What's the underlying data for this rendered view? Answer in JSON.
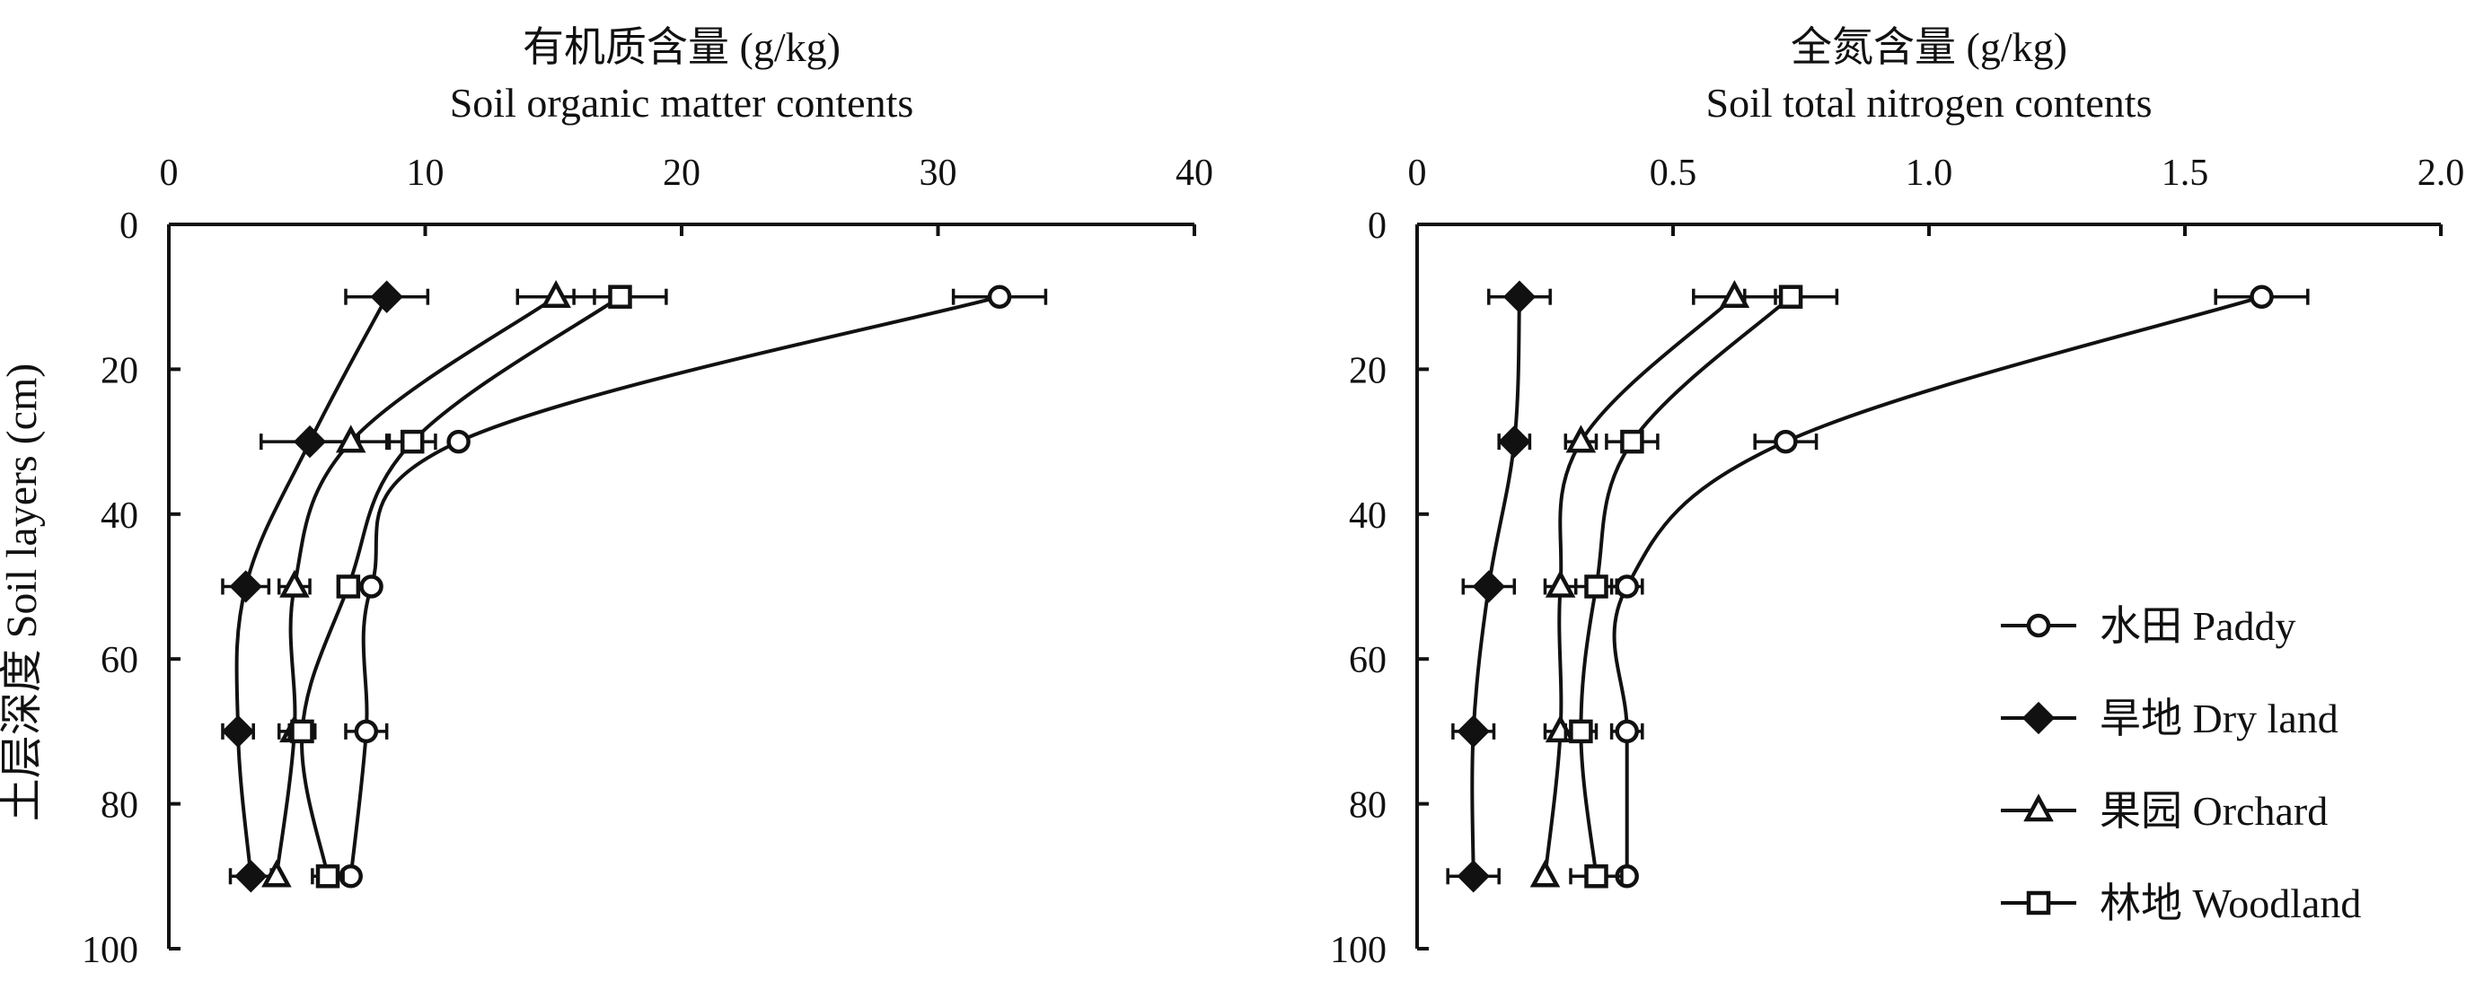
{
  "y_axis_label": "土层深度 Soil layers (cm)",
  "legend": [
    {
      "label": "水田 Paddy",
      "marker": "circle-open"
    },
    {
      "label": "旱地 Dry land",
      "marker": "diamond-filled"
    },
    {
      "label": "果园 Orchard",
      "marker": "triangle-open"
    },
    {
      "label": "林地 Woodland",
      "marker": "square-open"
    }
  ],
  "chart_data": [
    {
      "type": "line",
      "title": "有机质含量 (g/kg)",
      "subtitle": "Soil organic matter contents",
      "xlim": [
        0,
        40
      ],
      "xticks": [
        "0",
        "10",
        "20",
        "30",
        "40"
      ],
      "ylim": [
        0,
        100
      ],
      "yticks": [
        "0",
        "20",
        "40",
        "60",
        "80",
        "100"
      ],
      "y_inverted": true,
      "x_axis_position": "top",
      "series": [
        {
          "name": "水田 Paddy",
          "marker": "circle-open",
          "y": [
            10,
            30,
            50,
            70,
            90
          ],
          "x": [
            32.4,
            11.3,
            7.9,
            7.7,
            7.1
          ],
          "err": [
            1.8,
            0,
            0,
            0.8,
            0
          ]
        },
        {
          "name": "旱地 Dry land",
          "marker": "diamond-filled",
          "y": [
            10,
            30,
            50,
            70,
            90
          ],
          "x": [
            8.5,
            5.5,
            3.0,
            2.7,
            3.2
          ],
          "err": [
            1.6,
            1.9,
            0.9,
            0.6,
            0.8
          ]
        },
        {
          "name": "果园 Orchard",
          "marker": "triangle-open",
          "y": [
            10,
            30,
            50,
            70,
            90
          ],
          "x": [
            15.1,
            7.1,
            4.9,
            4.9,
            4.2
          ],
          "err": [
            1.5,
            1.4,
            0.6,
            0.6,
            0
          ]
        },
        {
          "name": "林地 Woodland",
          "marker": "square-open",
          "y": [
            10,
            30,
            50,
            70,
            90
          ],
          "x": [
            17.6,
            9.5,
            7.0,
            5.2,
            6.2
          ],
          "err": [
            1.8,
            0.9,
            0,
            0.5,
            0.6
          ]
        }
      ]
    },
    {
      "type": "line",
      "title": "全氮含量 (g/kg)",
      "subtitle": "Soil total nitrogen contents",
      "xlim": [
        0,
        2.0
      ],
      "xticks": [
        "0",
        "0.5",
        "1.0",
        "1.5",
        "2.0"
      ],
      "ylim": [
        0,
        100
      ],
      "yticks": [
        "0",
        "20",
        "40",
        "60",
        "80",
        "100"
      ],
      "y_inverted": true,
      "x_axis_position": "top",
      "series": [
        {
          "name": "水田 Paddy",
          "marker": "circle-open",
          "y": [
            10,
            30,
            50,
            70,
            90
          ],
          "x": [
            1.65,
            0.72,
            0.41,
            0.41,
            0.41
          ],
          "err": [
            0.09,
            0.06,
            0.03,
            0.03,
            0
          ]
        },
        {
          "name": "旱地 Dry land",
          "marker": "diamond-filled",
          "y": [
            10,
            30,
            50,
            70,
            90
          ],
          "x": [
            0.2,
            0.19,
            0.14,
            0.11,
            0.11
          ],
          "err": [
            0.06,
            0.03,
            0.05,
            0.04,
            0.05
          ]
        },
        {
          "name": "果园 Orchard",
          "marker": "triangle-open",
          "y": [
            10,
            30,
            50,
            70,
            90
          ],
          "x": [
            0.62,
            0.32,
            0.28,
            0.28,
            0.25
          ],
          "err": [
            0.08,
            0.03,
            0.03,
            0.03,
            0
          ]
        },
        {
          "name": "林地 Woodland",
          "marker": "square-open",
          "y": [
            10,
            30,
            50,
            70,
            90
          ],
          "x": [
            0.73,
            0.42,
            0.35,
            0.32,
            0.35
          ],
          "err": [
            0.09,
            0.05,
            0.04,
            0.03,
            0.05
          ]
        }
      ]
    }
  ]
}
